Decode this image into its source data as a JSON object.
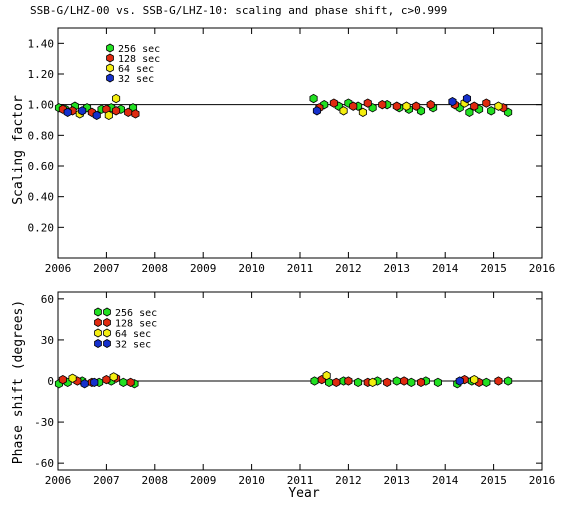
{
  "title": "SSB-G/LHZ-00 vs. SSB-G/LHZ-10: scaling and phase shift, c>0.999",
  "colors": {
    "s256": "#22e022",
    "s128": "#e02a10",
    "s64": "#f4ee10",
    "s32": "#1530cc",
    "axis": "#000000",
    "background": "#ffffff"
  },
  "chart_data": [
    {
      "type": "scatter",
      "ylabel": "Scaling factor",
      "xlabel": "",
      "xlim": [
        2006,
        2016
      ],
      "ylim": [
        0,
        1.5
      ],
      "xticks": [
        2006,
        2007,
        2008,
        2009,
        2010,
        2011,
        2012,
        2013,
        2014,
        2015,
        2016
      ],
      "yticks": [
        "0.20",
        "0.40",
        "0.60",
        "0.80",
        "1.00",
        "1.20",
        "1.40"
      ],
      "yticks_values": [
        0.2,
        0.4,
        0.6,
        0.8,
        1.0,
        1.2,
        1.4
      ],
      "reference_line": 1.0,
      "legend_position": "top-left",
      "legend": [
        {
          "name": "256 sec",
          "color": "#22e022"
        },
        {
          "name": "128 sec",
          "color": "#e02a10"
        },
        {
          "name": "64 sec",
          "color": "#f4ee10"
        },
        {
          "name": "32 sec",
          "color": "#1530cc"
        }
      ],
      "series": [
        {
          "name": "256 sec",
          "color": "#22e022",
          "points": [
            [
              2006.02,
              0.98
            ],
            [
              2006.15,
              0.97
            ],
            [
              2006.35,
              0.99
            ],
            [
              2006.6,
              0.98
            ],
            [
              2006.9,
              0.97
            ],
            [
              2007.1,
              0.98
            ],
            [
              2007.3,
              0.97
            ],
            [
              2007.55,
              0.98
            ],
            [
              2011.28,
              1.04
            ],
            [
              2011.5,
              1.0
            ],
            [
              2011.8,
              0.99
            ],
            [
              2012.0,
              1.01
            ],
            [
              2012.2,
              0.99
            ],
            [
              2012.5,
              0.98
            ],
            [
              2012.8,
              1.0
            ],
            [
              2013.05,
              0.98
            ],
            [
              2013.25,
              0.97
            ],
            [
              2013.5,
              0.96
            ],
            [
              2013.75,
              0.98
            ],
            [
              2014.3,
              0.98
            ],
            [
              2014.5,
              0.95
            ],
            [
              2014.7,
              0.97
            ],
            [
              2014.95,
              0.96
            ],
            [
              2015.3,
              0.95
            ]
          ]
        },
        {
          "name": "128 sec",
          "color": "#e02a10",
          "points": [
            [
              2006.1,
              0.97
            ],
            [
              2006.3,
              0.96
            ],
            [
              2006.7,
              0.95
            ],
            [
              2007.0,
              0.97
            ],
            [
              2007.2,
              0.96
            ],
            [
              2007.45,
              0.95
            ],
            [
              2007.6,
              0.94
            ],
            [
              2011.4,
              0.98
            ],
            [
              2011.7,
              1.01
            ],
            [
              2012.1,
              0.99
            ],
            [
              2012.4,
              1.01
            ],
            [
              2012.7,
              1.0
            ],
            [
              2013.0,
              0.99
            ],
            [
              2013.4,
              0.99
            ],
            [
              2013.7,
              1.0
            ],
            [
              2014.2,
              1.0
            ],
            [
              2014.6,
              0.99
            ],
            [
              2014.85,
              1.01
            ],
            [
              2015.2,
              0.98
            ]
          ]
        },
        {
          "name": "64 sec",
          "color": "#f4ee10",
          "points": [
            [
              2006.45,
              0.94
            ],
            [
              2007.05,
              0.93
            ],
            [
              2007.2,
              1.04
            ],
            [
              2011.9,
              0.96
            ],
            [
              2012.3,
              0.95
            ],
            [
              2013.2,
              0.99
            ],
            [
              2014.4,
              1.01
            ],
            [
              2015.1,
              0.99
            ]
          ]
        },
        {
          "name": "32 sec",
          "color": "#1530cc",
          "points": [
            [
              2006.2,
              0.95
            ],
            [
              2006.5,
              0.96
            ],
            [
              2006.8,
              0.93
            ],
            [
              2011.35,
              0.96
            ],
            [
              2014.15,
              1.02
            ],
            [
              2014.45,
              1.04
            ]
          ]
        }
      ]
    },
    {
      "type": "scatter",
      "ylabel": "Phase shift (degrees)",
      "xlabel": "Year",
      "xlim": [
        2006,
        2016
      ],
      "ylim": [
        -65,
        65
      ],
      "xticks": [
        2006,
        2007,
        2008,
        2009,
        2010,
        2011,
        2012,
        2013,
        2014,
        2015,
        2016
      ],
      "yticks": [
        "-60",
        "-30",
        "0",
        "30",
        "60"
      ],
      "yticks_values": [
        -60,
        -30,
        0,
        30,
        60
      ],
      "reference_line": 0,
      "legend_position": "top-left",
      "legend": [
        {
          "name": "256 sec",
          "color": "#22e022"
        },
        {
          "name": "128 sec",
          "color": "#e02a10"
        },
        {
          "name": "64 sec",
          "color": "#f4ee10"
        },
        {
          "name": "32 sec",
          "color": "#1530cc"
        }
      ],
      "series": [
        {
          "name": "256 sec",
          "color": "#22e022",
          "points": [
            [
              2006.02,
              -2
            ],
            [
              2006.2,
              -1
            ],
            [
              2006.5,
              0
            ],
            [
              2006.85,
              -1
            ],
            [
              2007.1,
              0
            ],
            [
              2007.35,
              -1
            ],
            [
              2007.58,
              -2
            ],
            [
              2011.3,
              0
            ],
            [
              2011.6,
              -1
            ],
            [
              2011.9,
              0
            ],
            [
              2012.2,
              -1
            ],
            [
              2012.6,
              0
            ],
            [
              2013.0,
              0
            ],
            [
              2013.3,
              -1
            ],
            [
              2013.6,
              0
            ],
            [
              2013.85,
              -1
            ],
            [
              2014.25,
              -2
            ],
            [
              2014.55,
              0
            ],
            [
              2014.85,
              -1
            ],
            [
              2015.3,
              0
            ]
          ]
        },
        {
          "name": "128 sec",
          "color": "#e02a10",
          "points": [
            [
              2006.1,
              1
            ],
            [
              2006.4,
              0
            ],
            [
              2006.7,
              -1
            ],
            [
              2007.0,
              1
            ],
            [
              2007.2,
              2
            ],
            [
              2007.5,
              -1
            ],
            [
              2011.45,
              1
            ],
            [
              2011.75,
              -1
            ],
            [
              2012.0,
              0
            ],
            [
              2012.4,
              -1
            ],
            [
              2012.8,
              -1
            ],
            [
              2013.15,
              0
            ],
            [
              2013.5,
              -1
            ],
            [
              2014.4,
              1
            ],
            [
              2014.7,
              -1
            ],
            [
              2015.1,
              0
            ]
          ]
        },
        {
          "name": "64 sec",
          "color": "#f4ee10",
          "points": [
            [
              2006.3,
              2
            ],
            [
              2007.15,
              3
            ],
            [
              2011.55,
              4
            ],
            [
              2012.5,
              -1
            ],
            [
              2014.6,
              1
            ]
          ]
        },
        {
          "name": "32 sec",
          "color": "#1530cc",
          "points": [
            [
              2006.55,
              -2
            ],
            [
              2006.75,
              -1
            ],
            [
              2014.3,
              0
            ]
          ]
        }
      ]
    }
  ]
}
